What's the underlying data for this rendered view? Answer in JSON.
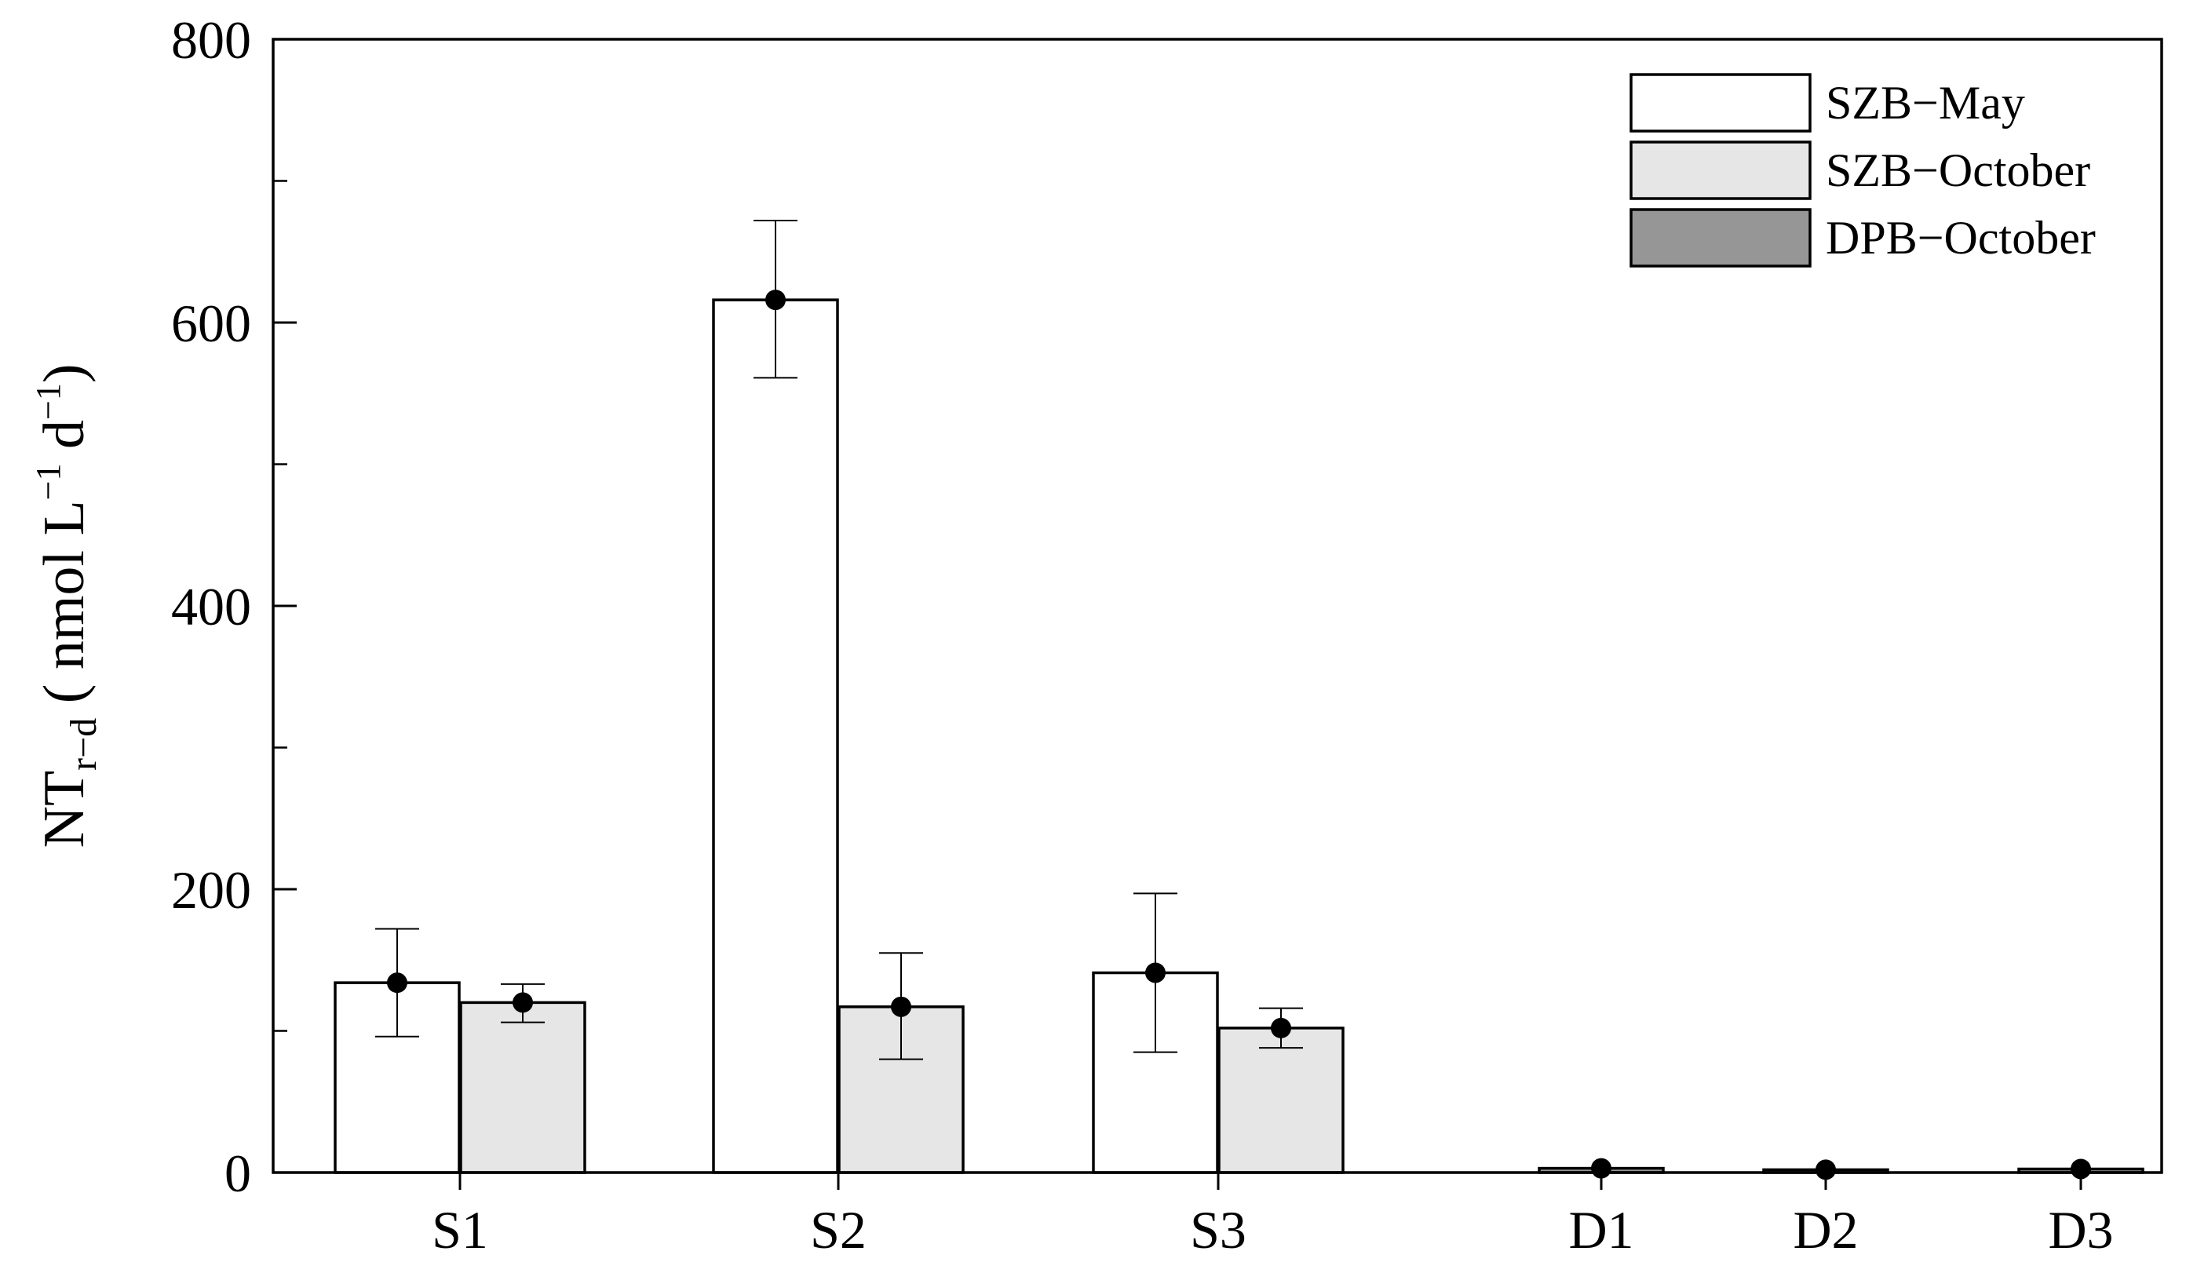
{
  "chart_data": {
    "type": "bar",
    "categories": [
      "S1",
      "S2",
      "S3",
      "D1",
      "D2",
      "D3"
    ],
    "ylabel": {
      "main": "NT",
      "subscript": "r−d",
      "unit_open": " ( nmol L",
      "unit_sup1": "−1",
      "unit_mid": " d",
      "unit_sup2": "−1",
      "unit_close": ")"
    },
    "xlabel": "",
    "ylim": [
      0,
      800
    ],
    "yticks": [
      0,
      200,
      400,
      600,
      800
    ],
    "yticks_minor": [
      100,
      300,
      500,
      700
    ],
    "grid": false,
    "legend_position": "top-right",
    "series": [
      {
        "name": "SZB−May",
        "color": "#ffffff",
        "values": [
          134,
          616,
          141,
          null,
          null,
          null
        ],
        "err_low": [
          96,
          561,
          85,
          null,
          null,
          null
        ],
        "err_high": [
          172,
          672,
          197,
          null,
          null,
          null
        ]
      },
      {
        "name": "SZB−October",
        "color": "#e6e6e6",
        "values": [
          120,
          117,
          102,
          null,
          null,
          null
        ],
        "err_low": [
          106,
          80,
          88,
          null,
          null,
          null
        ],
        "err_high": [
          133,
          155,
          116,
          null,
          null,
          null
        ]
      },
      {
        "name": "DPB−October",
        "color": "#969696",
        "values": [
          null,
          null,
          null,
          3,
          2,
          2.5
        ],
        "err_low": [
          null,
          null,
          null,
          2,
          1,
          1.5
        ],
        "err_high": [
          null,
          null,
          null,
          4,
          3,
          3.5
        ]
      }
    ]
  }
}
